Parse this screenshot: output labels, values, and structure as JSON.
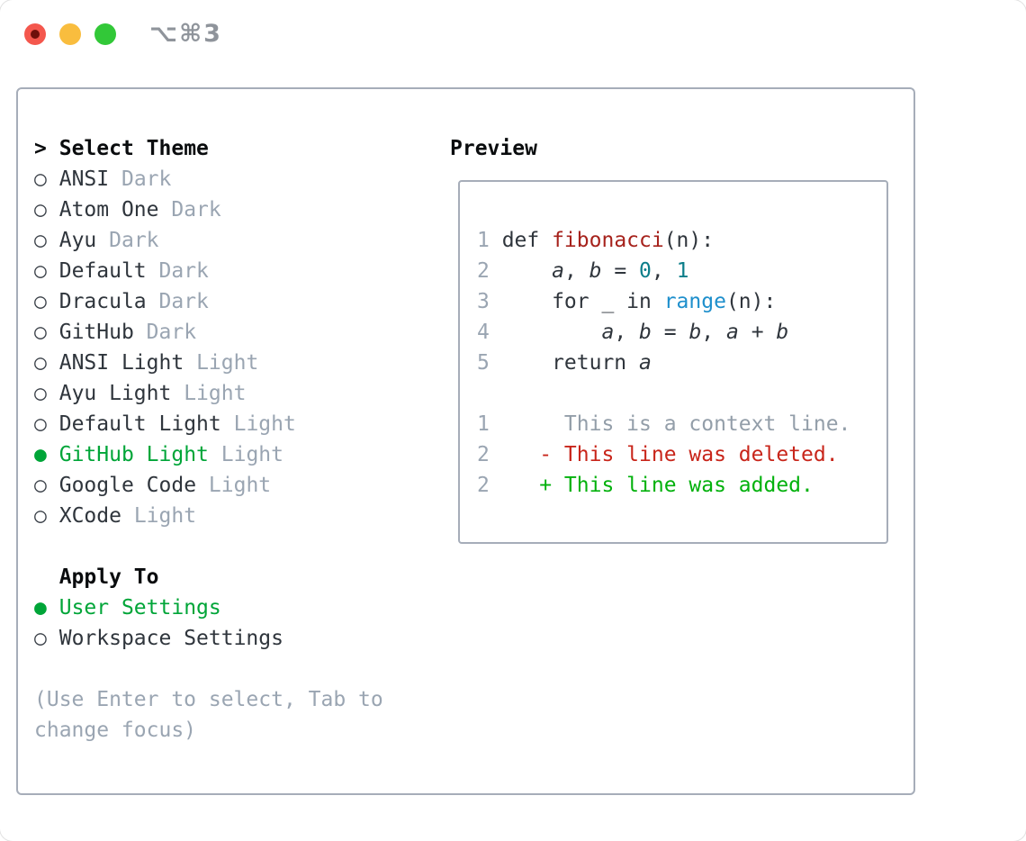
{
  "window": {
    "shortcut_label": "⌥⌘3",
    "traffic_lights": [
      "close",
      "minimize",
      "zoom"
    ]
  },
  "colors": {
    "accent_green": "#00a538",
    "diff_added": "#02b10c",
    "diff_deleted": "#c8251a",
    "function_red": "#a6221c",
    "number_teal": "#0c7e8a",
    "builtin_blue": "#1e8fcc",
    "muted_gray": "#9aa5b2",
    "text_dark": "#2f353c",
    "border_gray": "#a6adb9",
    "traffic_red": "#f4574d",
    "traffic_yellow": "#f9bd3e",
    "traffic_green": "#32c838"
  },
  "theme_picker": {
    "title": "Select Theme",
    "title_marker": ">",
    "radio_unselected": "○",
    "radio_selected": "●",
    "themes": [
      {
        "name": "ANSI",
        "variant": "Dark",
        "selected": false
      },
      {
        "name": "Atom One",
        "variant": "Dark",
        "selected": false
      },
      {
        "name": "Ayu",
        "variant": "Dark",
        "selected": false
      },
      {
        "name": "Default",
        "variant": "Dark",
        "selected": false
      },
      {
        "name": "Dracula",
        "variant": "Dark",
        "selected": false
      },
      {
        "name": "GitHub",
        "variant": "Dark",
        "selected": false
      },
      {
        "name": "ANSI Light",
        "variant": "Light",
        "selected": false
      },
      {
        "name": "Ayu Light",
        "variant": "Light",
        "selected": false
      },
      {
        "name": "Default Light",
        "variant": "Light",
        "selected": false
      },
      {
        "name": "GitHub Light",
        "variant": "Light",
        "selected": true
      },
      {
        "name": "Google Code",
        "variant": "Light",
        "selected": false
      },
      {
        "name": "XCode",
        "variant": "Light",
        "selected": false
      }
    ],
    "apply_to": {
      "title": "Apply To",
      "options": [
        {
          "name": "User Settings",
          "selected": true
        },
        {
          "name": "Workspace Settings",
          "selected": false
        }
      ]
    },
    "hint_lines": [
      "(Use Enter to select, Tab to",
      "change focus)"
    ]
  },
  "preview": {
    "title": "Preview",
    "lines": [
      {
        "num": "1",
        "kind": "code",
        "segments": [
          {
            "text": "def ",
            "style": "text"
          },
          {
            "text": "fibonacci",
            "style": "func"
          },
          {
            "text": "(n):",
            "style": "text"
          }
        ]
      },
      {
        "num": "2",
        "kind": "code",
        "segments": [
          {
            "text": "    ",
            "style": "text"
          },
          {
            "text": "a",
            "style": "var"
          },
          {
            "text": ", ",
            "style": "text"
          },
          {
            "text": "b",
            "style": "var"
          },
          {
            "text": " = ",
            "style": "text"
          },
          {
            "text": "0",
            "style": "num"
          },
          {
            "text": ", ",
            "style": "text"
          },
          {
            "text": "1",
            "style": "num"
          }
        ]
      },
      {
        "num": "3",
        "kind": "code",
        "segments": [
          {
            "text": "    for _ in ",
            "style": "text"
          },
          {
            "text": "range",
            "style": "builtin"
          },
          {
            "text": "(n):",
            "style": "text"
          }
        ]
      },
      {
        "num": "4",
        "kind": "code",
        "segments": [
          {
            "text": "        ",
            "style": "text"
          },
          {
            "text": "a",
            "style": "var"
          },
          {
            "text": ", ",
            "style": "text"
          },
          {
            "text": "b",
            "style": "var"
          },
          {
            "text": " = ",
            "style": "text"
          },
          {
            "text": "b",
            "style": "var"
          },
          {
            "text": ", ",
            "style": "text"
          },
          {
            "text": "a",
            "style": "var"
          },
          {
            "text": " + ",
            "style": "text"
          },
          {
            "text": "b",
            "style": "var"
          }
        ]
      },
      {
        "num": "5",
        "kind": "code",
        "segments": [
          {
            "text": "    return ",
            "style": "text"
          },
          {
            "text": "a",
            "style": "var"
          }
        ]
      },
      {
        "num": "",
        "kind": "blank",
        "segments": []
      },
      {
        "num": "1",
        "kind": "diff-context",
        "segments": [
          {
            "text": "     This is a context line.",
            "style": "context"
          }
        ]
      },
      {
        "num": "2",
        "kind": "diff-deleted",
        "segments": [
          {
            "text": "   - This line was deleted.",
            "style": "deleted"
          }
        ]
      },
      {
        "num": "2",
        "kind": "diff-added",
        "segments": [
          {
            "text": "   + This line was added.",
            "style": "added"
          }
        ]
      }
    ]
  }
}
